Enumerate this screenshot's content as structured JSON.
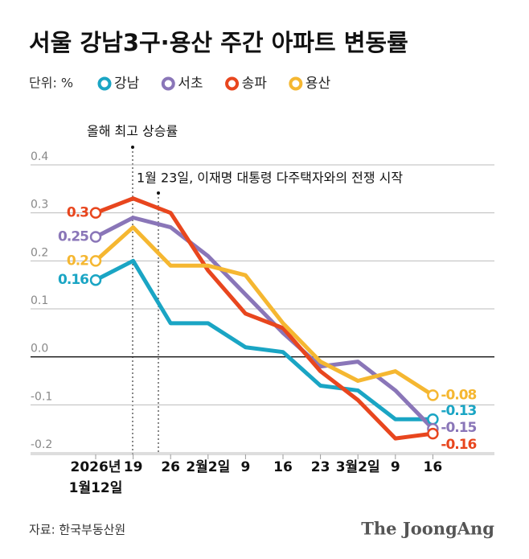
{
  "chart_data": {
    "type": "line",
    "title": "서울 강남3구·용산 주간 아파트 변동률",
    "unit_label": "단위: %",
    "categories": [
      "2026년\n1월12일",
      "19",
      "26",
      "2월2일",
      "9",
      "16",
      "23",
      "3월2일",
      "9",
      "16"
    ],
    "series": [
      {
        "name": "강남",
        "color": "#1aa5c4",
        "values": [
          0.16,
          0.2,
          0.07,
          0.07,
          0.02,
          0.01,
          -0.06,
          -0.07,
          -0.13,
          -0.13
        ]
      },
      {
        "name": "서초",
        "color": "#8a76b8",
        "values": [
          0.25,
          0.29,
          0.27,
          0.21,
          0.13,
          0.05,
          -0.02,
          -0.01,
          -0.07,
          -0.15
        ]
      },
      {
        "name": "송파",
        "color": "#e8461e",
        "values": [
          0.3,
          0.33,
          0.3,
          0.18,
          0.09,
          0.06,
          -0.03,
          -0.09,
          -0.17,
          -0.16
        ]
      },
      {
        "name": "용산",
        "color": "#f5b731",
        "values": [
          0.2,
          0.27,
          0.19,
          0.19,
          0.17,
          0.07,
          -0.01,
          -0.05,
          -0.03,
          -0.08
        ]
      }
    ],
    "ylim": [
      -0.2,
      0.4
    ],
    "yticks": [
      0.4,
      0.3,
      0.2,
      0.1,
      {
        "value": 0,
        "label": "0.0"
      },
      -0.1,
      -0.2
    ],
    "grid": true,
    "annotations": [
      "올해 최고 상승률",
      "1월 23일, 이재명 대통령 다주택자와의 전쟁 시작"
    ],
    "source": "자료: 한국부동산원",
    "logo": "The JoongAng"
  }
}
